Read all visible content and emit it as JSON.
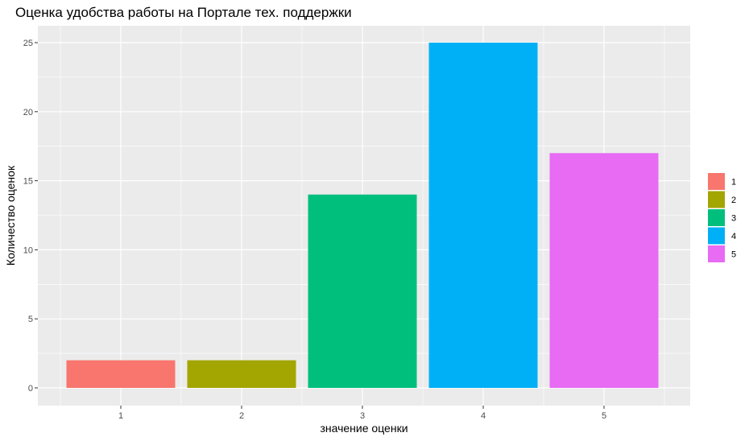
{
  "chart_data": {
    "type": "bar",
    "title": "Оценка удобства работы на Портале тех. поддержки",
    "xlabel": "значение оценки",
    "ylabel": "Количество оценок",
    "categories": [
      "1",
      "2",
      "3",
      "4",
      "5"
    ],
    "values": [
      2,
      2,
      14,
      25,
      17
    ],
    "colors": [
      "#F8766D",
      "#A3A500",
      "#00BF7D",
      "#00B0F6",
      "#E76BF3"
    ],
    "ylim": [
      0,
      26.25
    ],
    "yticks": [
      0,
      5,
      10,
      15,
      20,
      25
    ],
    "grid": true,
    "panel_background": "#EBEBEB",
    "grid_color": "#FFFFFF",
    "legend": {
      "placement": "right",
      "entries": [
        "1",
        "2",
        "3",
        "4",
        "5"
      ]
    }
  }
}
